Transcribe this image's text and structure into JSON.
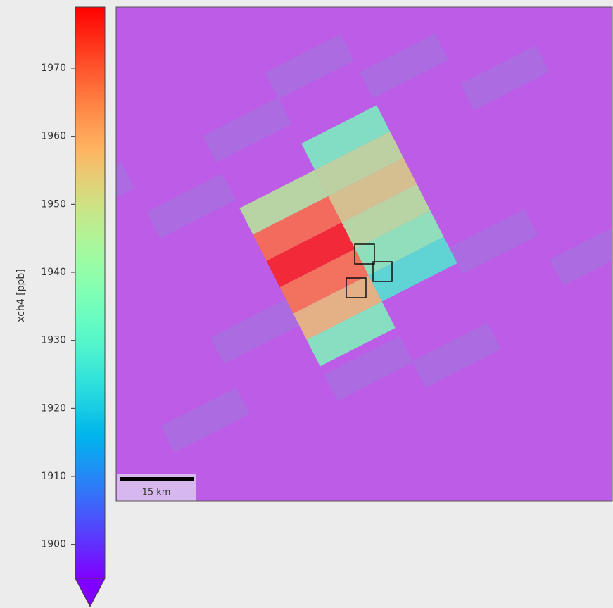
{
  "colorbar": {
    "label": "xch4 [ppb]",
    "clim": [
      1895,
      1979
    ],
    "ticks": [
      1900,
      1910,
      1920,
      1930,
      1940,
      1950,
      1960,
      1970
    ]
  },
  "map": {
    "grid": [
      [
        null,
        1935
      ],
      [
        1946,
        1947
      ],
      [
        1967,
        1952
      ],
      [
        1976,
        1946
      ],
      [
        1966,
        1938
      ],
      [
        1955,
        1928
      ],
      [
        1936,
        null
      ]
    ],
    "scale_bar": "15 km"
  }
}
